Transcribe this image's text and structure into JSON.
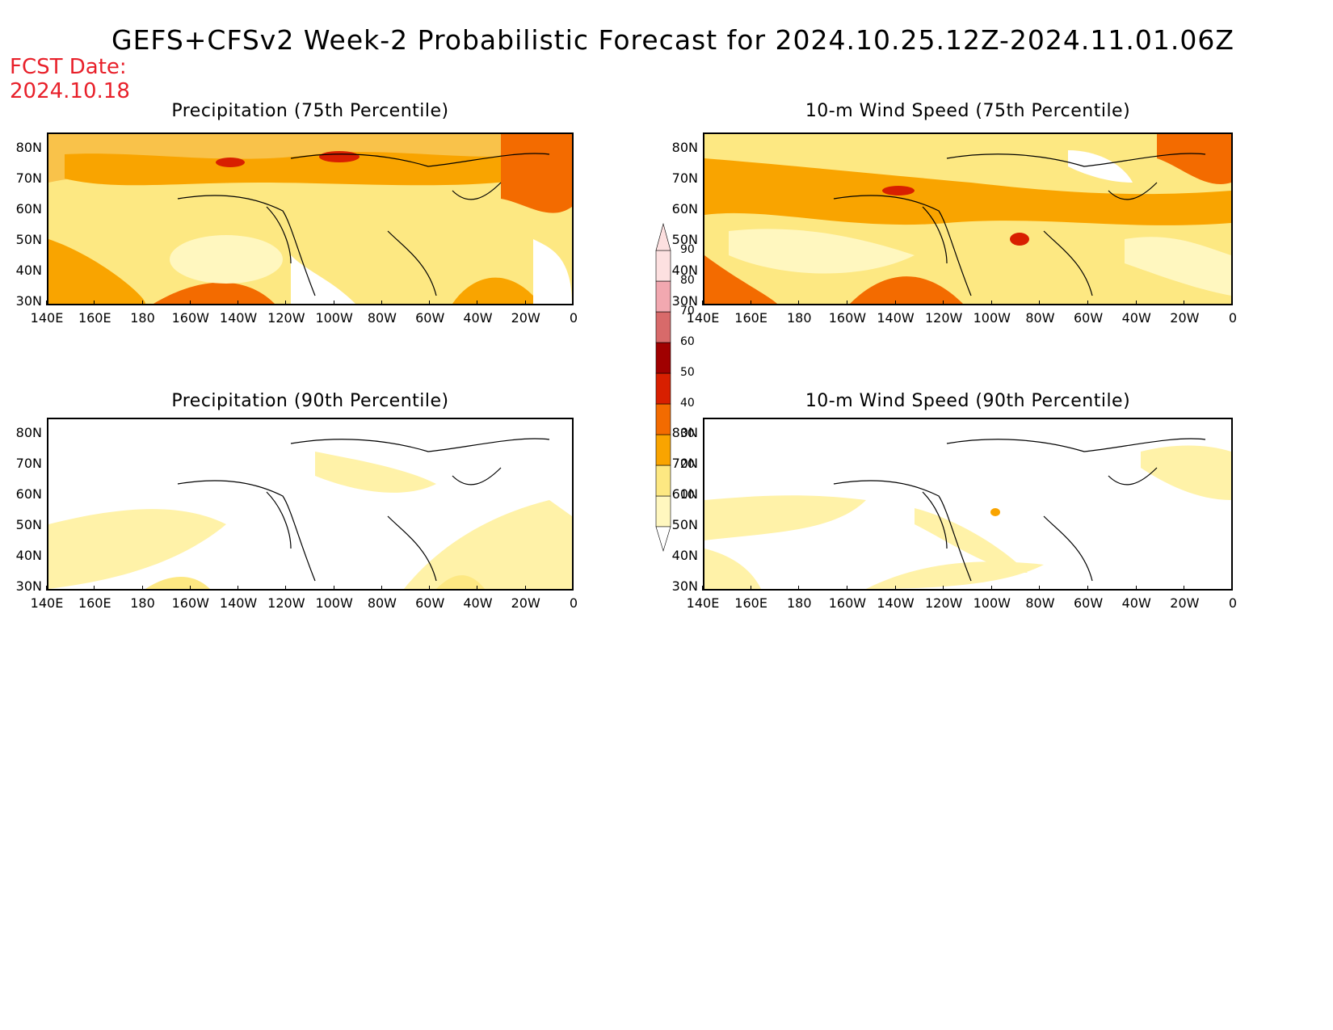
{
  "title": "GEFS+CFSv2 Week-2 Probabilistic Forecast for 2024.10.25.12Z-2024.11.01.06Z",
  "fcst_date": {
    "label": "FCST Date:",
    "value": "2024.10.18"
  },
  "panels": [
    {
      "id": "precip-75",
      "title": "Precipitation (75th Percentile)"
    },
    {
      "id": "wind-75",
      "title": "10-m Wind Speed (75th Percentile)"
    },
    {
      "id": "precip-90",
      "title": "Precipitation (90th Percentile)"
    },
    {
      "id": "wind-90",
      "title": "10-m Wind Speed (90th Percentile)"
    }
  ],
  "lat_ticks": [
    "80N",
    "70N",
    "60N",
    "50N",
    "40N",
    "30N"
  ],
  "lon_ticks": [
    "140E",
    "160E",
    "180",
    "160W",
    "140W",
    "120W",
    "100W",
    "80W",
    "60W",
    "40W",
    "20W",
    "0"
  ],
  "colorbar": {
    "levels": [
      "10",
      "20",
      "30",
      "40",
      "50",
      "60",
      "70",
      "80",
      "90"
    ],
    "colors": [
      "#fff7bf",
      "#fde882",
      "#f9a400",
      "#f36b00",
      "#d81f00",
      "#a00000",
      "#d86a6a",
      "#f2a8b0",
      "#fde0e0"
    ]
  }
}
